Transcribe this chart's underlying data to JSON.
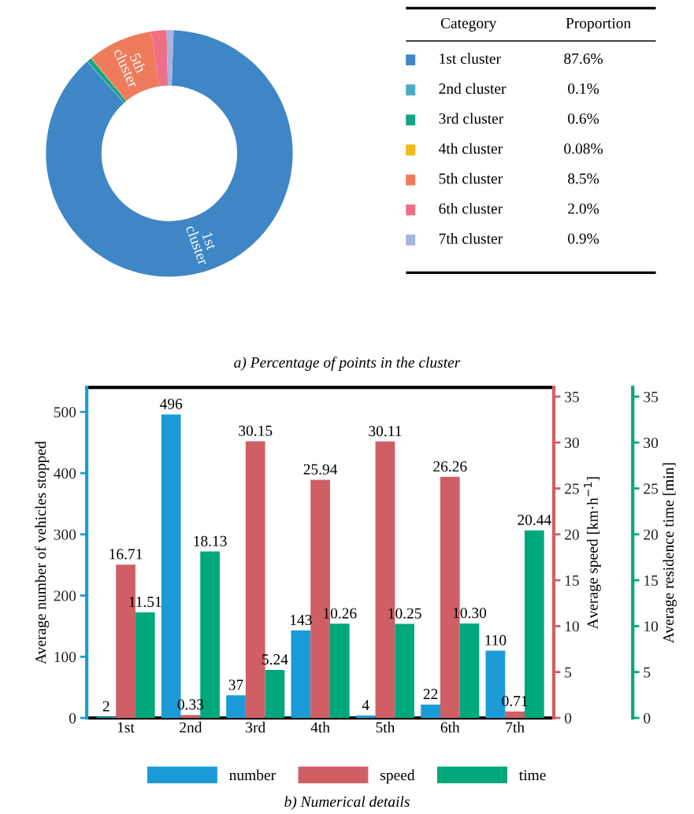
{
  "chart_data": [
    {
      "type": "donut",
      "categories": [
        "1st cluster",
        "2nd cluster",
        "3rd cluster",
        "4th cluster",
        "5th cluster",
        "6th cluster",
        "7th cluster"
      ],
      "values": [
        87.6,
        0.1,
        0.6,
        0.08,
        8.5,
        2.0,
        0.9
      ],
      "colors": [
        "#3f86c6",
        "#4bacc6",
        "#12a589",
        "#f6b81c",
        "#ef7b5d",
        "#ef6f86",
        "#a3b6df"
      ],
      "value_labels": [
        "87.6%",
        "0.1%",
        "0.6%",
        "0.08%",
        "8.5%",
        "2.0%",
        "0.9%"
      ],
      "legend": "right",
      "annotations": [
        "Category",
        "Proportion",
        "a) Percentage of points in the cluster",
        {
          "text": "1st\ncluster",
          "x": "1st cluster"
        },
        {
          "text": "5th\ncluster",
          "x": "5th cluster"
        }
      ]
    },
    {
      "type": "bar",
      "categories": [
        "1st",
        "2nd",
        "3rd",
        "4th",
        "5th",
        "6th",
        "7th"
      ],
      "series": [
        {
          "name": "number",
          "color": "#1a9bd8",
          "axis": "y",
          "values": [
            2,
            496,
            37,
            143,
            4,
            22,
            110
          ],
          "value_labels": [
            "2",
            "496",
            "37",
            "143",
            "4",
            "22",
            "110"
          ]
        },
        {
          "name": "speed",
          "color": "#d05e65",
          "axis": "y2",
          "values": [
            16.71,
            0.33,
            30.15,
            25.94,
            30.11,
            26.26,
            0.71
          ],
          "value_labels": [
            "16.71",
            "0.33",
            "30.15",
            "25.94",
            "30.11",
            "26.26",
            "0.71"
          ]
        },
        {
          "name": "time",
          "color": "#00a87b",
          "axis": "y3",
          "values": [
            11.51,
            18.13,
            5.24,
            10.26,
            10.25,
            10.3,
            20.44
          ],
          "value_labels": [
            "11.51",
            "18.13",
            "5.24",
            "10.26",
            "10.25",
            "10.30",
            "20.44"
          ]
        }
      ],
      "ylim": [
        0,
        540
      ],
      "yticks": [
        0,
        100,
        200,
        300,
        400,
        500
      ],
      "y2lim": [
        0,
        36
      ],
      "y2ticks": [
        0,
        5,
        10,
        15,
        20,
        25,
        30,
        35
      ],
      "y3lim": [
        0,
        36
      ],
      "y3ticks": [
        0,
        5,
        10,
        15,
        20,
        25,
        30,
        35
      ],
      "ylabel": "Average number of vehicles stopped",
      "y2label": "Average speed [km·h$^{−1}$]",
      "y3label": "Average residence time [min]",
      "legend": "bottom",
      "grid": false,
      "annotations": [
        "b) Numerical details"
      ]
    }
  ]
}
